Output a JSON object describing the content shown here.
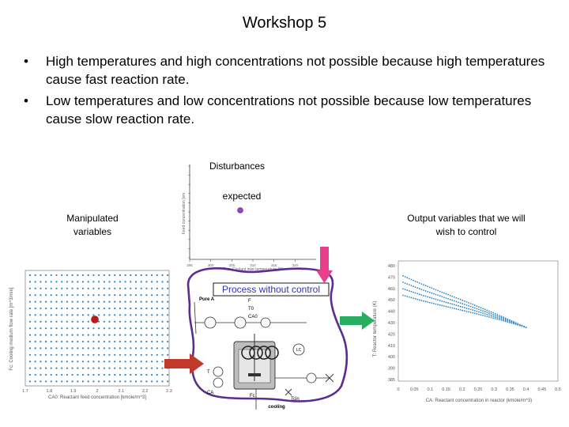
{
  "slide": {
    "title": "Workshop 5",
    "bullets": [
      "High temperatures and high concentrations not possible because high temperatures cause fast reaction rate.",
      "Low temperatures and low concentrations not possible because low temperatures cause slow reaction rate."
    ],
    "bullet_marker": "•"
  },
  "diagram": {
    "disturbances_label": "Disturbances",
    "expected_label": "expected",
    "manipulated_label": "Manipulated variables",
    "output_label": "Output variables that we will wish to control",
    "process_label": "Process without control",
    "process_parts": {
      "pure_a": "Pure A",
      "f": "F",
      "t0": "T0",
      "ca0": "CA0",
      "lc": "LC",
      "t": "T",
      "ca": "CA",
      "fc": "Fc",
      "tcin": "Tcin",
      "cooling": "cooling"
    },
    "colors": {
      "process_outline": "#5b2d8e",
      "manipulated_arrow": "#c0392b",
      "output_arrow": "#27ae60",
      "disturbance_arrow": "#e83e8c",
      "dot_grid": "#2e86c1",
      "marker_red": "#c0161c",
      "marker_purple": "#9b3fbf"
    }
  },
  "chart_data": [
    {
      "type": "scatter",
      "name_hint": "disturbance",
      "ylabel": "Feed concentration [km",
      "xlabel": "Tcin: Coolant inlet temperature [K]",
      "xlim": [
        295,
        325
      ],
      "x_ticks": [
        "295",
        "300",
        "305",
        "310",
        "315",
        "320"
      ],
      "points": [
        {
          "x": 307,
          "y": 0.6
        }
      ]
    },
    {
      "type": "scatter",
      "name_hint": "manipulated",
      "ylabel": "Fc: Cooling medium flow rate [m^3/min]",
      "xlabel": "CA0: Reactant feed concentration [kmole/m^3]",
      "xlim": [
        1.7,
        2.3
      ],
      "x_ticks": [
        "1.7",
        "1.8",
        "1.9",
        "2",
        "2.1",
        "2.2",
        "2.3"
      ],
      "highlight": {
        "x": 2.0,
        "y": 0.55
      }
    },
    {
      "type": "scatter",
      "name_hint": "output",
      "ylabel": "T: Reactor temperature (K)",
      "xlabel": "CA: Reactant concentration in reactor (kmole/m^3)",
      "xlim": [
        0,
        0.5
      ],
      "ylim": [
        385,
        480
      ],
      "x_ticks": [
        "0",
        "0.05",
        "0.1",
        "0.15",
        "0.2",
        "0.25",
        "0.3",
        "0.35",
        "0.4",
        "0.45",
        "0.5"
      ],
      "y_ticks": [
        "480",
        "470",
        "460",
        "450",
        "440",
        "430",
        "420",
        "410",
        "400",
        "390",
        "385"
      ]
    }
  ]
}
